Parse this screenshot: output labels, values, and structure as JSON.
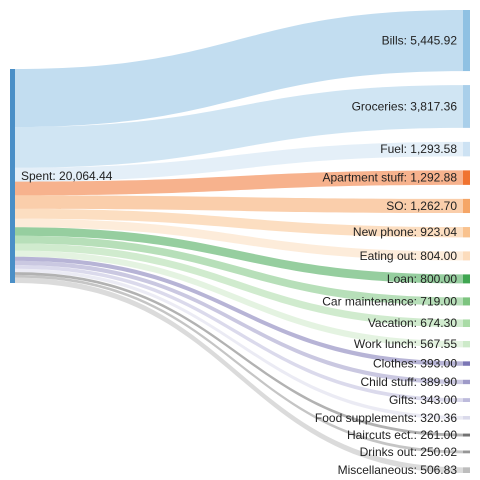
{
  "chart_data": {
    "type": "sankey",
    "source": {
      "label": "Spent: 20,064.44",
      "value": 20064.44,
      "color": "#4a8fc7"
    },
    "targets": [
      {
        "name": "Bills",
        "label": "Bills: 5,445.92",
        "value": 5445.92,
        "color": "#8fc1e3"
      },
      {
        "name": "Groceries",
        "label": "Groceries: 3,817.36",
        "value": 3817.36,
        "color": "#a9cfea"
      },
      {
        "name": "Fuel",
        "label": "Fuel: 1,293.58",
        "value": 1293.58,
        "color": "#cde2f3"
      },
      {
        "name": "Apartment stuff",
        "label": "Apartment stuff: 1,292.88",
        "value": 1292.88,
        "color": "#f07330"
      },
      {
        "name": "SO",
        "label": "SO: 1,262.70",
        "value": 1262.7,
        "color": "#f5a566"
      },
      {
        "name": "New phone",
        "label": "New phone: 923.04",
        "value": 923.04,
        "color": "#f9c28e"
      },
      {
        "name": "Eating out",
        "label": "Eating out: 804.00",
        "value": 804.0,
        "color": "#fcdcbc"
      },
      {
        "name": "Loan",
        "label": "Loan: 800.00",
        "value": 800.0,
        "color": "#3fa651"
      },
      {
        "name": "Car maintenance",
        "label": "Car maintenance: 719.00",
        "value": 719.0,
        "color": "#7cc47f"
      },
      {
        "name": "Vacation",
        "label": "Vacation: 674.30",
        "value": 674.3,
        "color": "#a9dba6"
      },
      {
        "name": "Work lunch",
        "label": "Work lunch: 567.55",
        "value": 567.55,
        "color": "#cdeac9"
      },
      {
        "name": "Clothes",
        "label": "Clothes: 393.00",
        "value": 393.0,
        "color": "#7b76b5"
      },
      {
        "name": "Child stuff",
        "label": "Child stuff: 389.90",
        "value": 389.9,
        "color": "#9e9ac8"
      },
      {
        "name": "Gifts",
        "label": "Gifts: 343.00",
        "value": 343.0,
        "color": "#bdbbdc"
      },
      {
        "name": "Food supplements",
        "label": "Food supplements: 320.36",
        "value": 320.36,
        "color": "#dadaeb"
      },
      {
        "name": "Haircuts ect.",
        "label": "Haircuts ect.: 261.00",
        "value": 261.0,
        "color": "#737373"
      },
      {
        "name": "Drinks out",
        "label": "Drinks out: 250.02",
        "value": 250.02,
        "color": "#969696"
      },
      {
        "name": "Miscellaneous",
        "label": "Miscellaneous: 506.83",
        "value": 506.83,
        "color": "#bdbdbd"
      }
    ]
  }
}
